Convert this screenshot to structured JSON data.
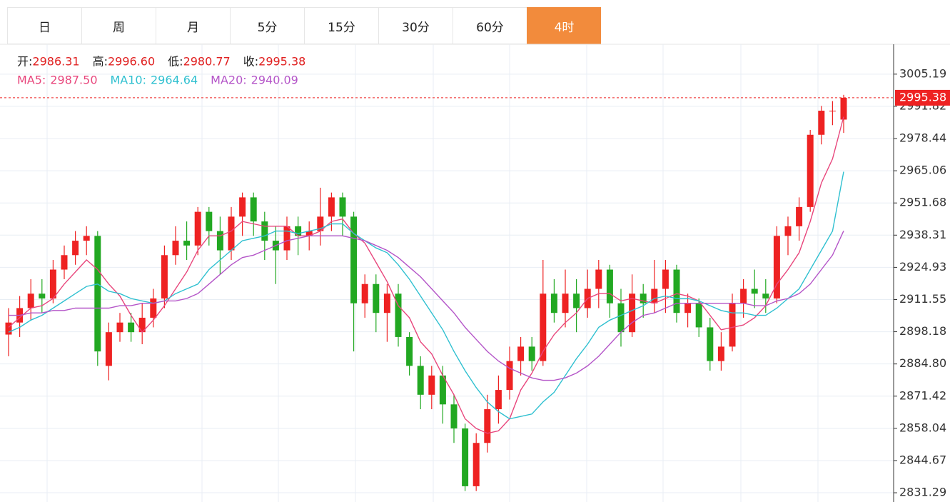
{
  "tabs": [
    "日",
    "周",
    "月",
    "5分",
    "15分",
    "30分",
    "60分",
    "4时"
  ],
  "active_tab": 7,
  "chart_data": {
    "type": "candlestick",
    "info": [
      {
        "label": "开:",
        "value": "2986.31"
      },
      {
        "label": "高:",
        "value": "2996.60"
      },
      {
        "label": "低:",
        "value": "2980.77"
      },
      {
        "label": "收:",
        "value": "2995.38"
      }
    ],
    "up_color": "#ee2222",
    "down_color": "#22a822",
    "open": [
      2897,
      2902,
      2908,
      2914,
      2912,
      2924,
      2930,
      2936,
      2938,
      2884,
      2898,
      2902,
      2898,
      2904,
      2912,
      2930,
      2936,
      2934,
      2948,
      2940,
      2932,
      2946,
      2954,
      2944,
      2936,
      2932,
      2942,
      2938,
      2940,
      2946,
      2954,
      2946,
      2910,
      2918,
      2906,
      2914,
      2896,
      2884,
      2872,
      2880,
      2868,
      2858,
      2834,
      2852,
      2866,
      2874,
      2886,
      2892,
      2886,
      2914,
      2906,
      2914,
      2908,
      2916,
      2924,
      2910,
      2898,
      2914,
      2910,
      2916,
      2924,
      2906,
      2910,
      2900,
      2886,
      2892,
      2910,
      2916,
      2914,
      2912,
      2938,
      2942,
      2950,
      2980,
      2990,
      2986.31
    ],
    "high": [
      2908,
      2913,
      2920,
      2920,
      2928,
      2934,
      2940,
      2942,
      2940,
      2902,
      2906,
      2906,
      2910,
      2916,
      2934,
      2942,
      2944,
      2950,
      2950,
      2946,
      2950,
      2956,
      2956,
      2948,
      2942,
      2946,
      2946,
      2944,
      2958,
      2956,
      2956,
      2948,
      2922,
      2922,
      2918,
      2918,
      2898,
      2888,
      2884,
      2884,
      2872,
      2860,
      2856,
      2872,
      2880,
      2892,
      2896,
      2896,
      2928,
      2920,
      2924,
      2920,
      2924,
      2928,
      2926,
      2916,
      2922,
      2918,
      2928,
      2928,
      2926,
      2914,
      2912,
      2904,
      2898,
      2914,
      2920,
      2924,
      2920,
      2942,
      2946,
      2954,
      2982,
      2992,
      2994,
      2996.6
    ],
    "low": [
      2888,
      2896,
      2903,
      2906,
      2910,
      2920,
      2926,
      2930,
      2884,
      2878,
      2894,
      2894,
      2893,
      2900,
      2908,
      2926,
      2928,
      2930,
      2934,
      2922,
      2928,
      2938,
      2938,
      2928,
      2918,
      2928,
      2930,
      2932,
      2934,
      2940,
      2938,
      2890,
      2904,
      2898,
      2894,
      2892,
      2880,
      2866,
      2866,
      2860,
      2852,
      2832,
      2832,
      2848,
      2860,
      2870,
      2880,
      2882,
      2884,
      2902,
      2900,
      2898,
      2904,
      2908,
      2904,
      2892,
      2896,
      2904,
      2906,
      2906,
      2902,
      2900,
      2896,
      2882,
      2882,
      2890,
      2904,
      2908,
      2906,
      2910,
      2930,
      2936,
      2948,
      2976,
      2984,
      2980.77
    ],
    "close": [
      2902,
      2908,
      2914,
      2912,
      2924,
      2930,
      2936,
      2938,
      2890,
      2898,
      2902,
      2898,
      2904,
      2912,
      2930,
      2936,
      2934,
      2948,
      2940,
      2932,
      2946,
      2954,
      2944,
      2936,
      2932,
      2942,
      2938,
      2940,
      2946,
      2954,
      2946,
      2910,
      2918,
      2906,
      2914,
      2896,
      2884,
      2872,
      2880,
      2868,
      2858,
      2834,
      2852,
      2866,
      2874,
      2886,
      2892,
      2886,
      2914,
      2906,
      2914,
      2908,
      2916,
      2924,
      2910,
      2898,
      2914,
      2910,
      2916,
      2924,
      2906,
      2910,
      2900,
      2886,
      2892,
      2910,
      2916,
      2914,
      2912,
      2938,
      2942,
      2950,
      2980,
      2990,
      2990,
      2995.38
    ],
    "series": [
      {
        "name": "MA5:",
        "color": "#e8467c",
        "legend_value": "2987.50",
        "values": [
          2900,
          2904,
          2908,
          2909,
          2912,
          2918,
          2923,
          2928,
          2924,
          2918,
          2913,
          2905,
          2898,
          2903,
          2909,
          2916,
          2923,
          2932,
          2938,
          2938,
          2940,
          2944,
          2943,
          2942,
          2942,
          2942,
          2938,
          2938,
          2940,
          2944,
          2945,
          2939,
          2935,
          2927,
          2919,
          2909,
          2904,
          2894,
          2889,
          2880,
          2872,
          2862,
          2858,
          2856,
          2857,
          2862,
          2874,
          2881,
          2890,
          2897,
          2902,
          2906,
          2912,
          2914,
          2914,
          2911,
          2912,
          2911,
          2910,
          2912,
          2914,
          2913,
          2911,
          2905,
          2899,
          2900,
          2901,
          2904,
          2909,
          2918,
          2924,
          2931,
          2944,
          2960,
          2970,
          2987.5
        ]
      },
      {
        "name": "MA10:",
        "color": "#2fc0d0",
        "legend_value": "2964.64",
        "values": [
          2898,
          2900,
          2903,
          2905,
          2908,
          2911,
          2914,
          2917,
          2918,
          2915,
          2914,
          2912,
          2911,
          2910,
          2911,
          2914,
          2916,
          2918,
          2924,
          2928,
          2932,
          2936,
          2937,
          2938,
          2940,
          2940,
          2939,
          2940,
          2941,
          2943,
          2943,
          2939,
          2936,
          2933,
          2931,
          2926,
          2920,
          2913,
          2906,
          2899,
          2890,
          2882,
          2875,
          2869,
          2865,
          2862,
          2863,
          2864,
          2869,
          2873,
          2880,
          2887,
          2893,
          2900,
          2903,
          2905,
          2907,
          2909,
          2912,
          2913,
          2912,
          2912,
          2911,
          2909,
          2907,
          2906,
          2906,
          2905,
          2905,
          2908,
          2912,
          2916,
          2924,
          2932,
          2940,
          2964.64
        ]
      },
      {
        "name": "MA20:",
        "color": "#b455c8",
        "legend_value": "2940.09",
        "values": [
          2905,
          2905,
          2906,
          2906,
          2907,
          2907,
          2908,
          2908,
          2908,
          2908,
          2909,
          2909,
          2910,
          2910,
          2911,
          2911,
          2912,
          2914,
          2918,
          2922,
          2926,
          2929,
          2930,
          2932,
          2934,
          2936,
          2937,
          2938,
          2938,
          2938,
          2938,
          2937,
          2936,
          2934,
          2932,
          2929,
          2925,
          2921,
          2916,
          2911,
          2906,
          2900,
          2895,
          2890,
          2886,
          2883,
          2881,
          2879,
          2878,
          2878,
          2879,
          2881,
          2884,
          2888,
          2893,
          2898,
          2902,
          2905,
          2906,
          2908,
          2910,
          2910,
          2910,
          2910,
          2910,
          2910,
          2910,
          2909,
          2909,
          2911,
          2912,
          2914,
          2918,
          2924,
          2930,
          2940.09
        ]
      }
    ],
    "ylim": [
      2827.45,
      3017.6
    ],
    "yticks": [
      3005.19,
      2991.82,
      2978.44,
      2965.06,
      2951.68,
      2938.31,
      2924.93,
      2911.55,
      2898.18,
      {
        "value": 2884.8,
        "label": "2884.80"
      },
      2871.42,
      2858.04,
      2844.67,
      2831.29
    ],
    "grid": true
  }
}
